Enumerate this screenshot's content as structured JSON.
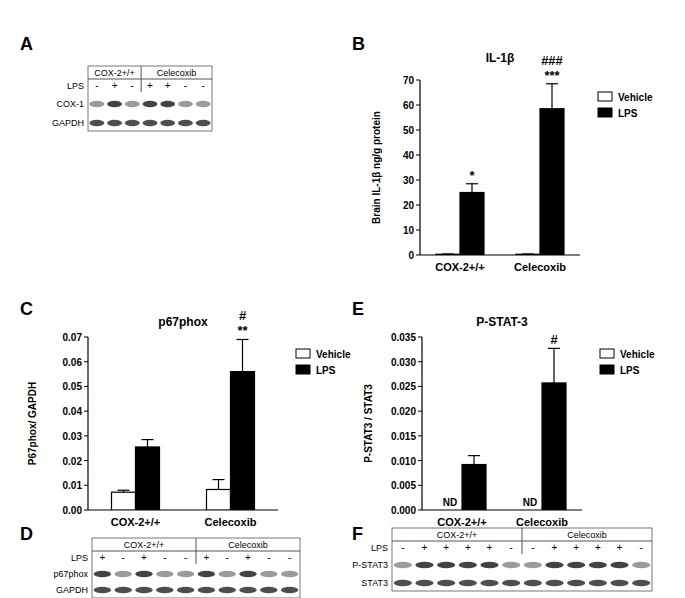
{
  "chart_data": [
    {
      "type": "bar",
      "label": "B",
      "title": "IL-1β",
      "y_label": "Brain IL-1β ng/g protein",
      "categories": [
        "COX-2+/+",
        "Celecoxib"
      ],
      "series": [
        {
          "name": "Vehicle",
          "color": "#ffffff",
          "values": [
            0.3,
            0.3
          ],
          "errors": [
            0.1,
            0.1
          ]
        },
        {
          "name": "LPS",
          "color": "#000000",
          "values": [
            25,
            58.5
          ],
          "errors": [
            3.5,
            10
          ]
        }
      ],
      "ylim": [
        0,
        70
      ],
      "yticks": [
        0,
        10,
        20,
        30,
        40,
        50,
        60,
        70
      ],
      "legend": "upper right",
      "annotations": [
        {
          "text": "*",
          "category": 0,
          "series": 1
        },
        {
          "text": "***",
          "category": 1,
          "series": 1
        },
        {
          "text": "###",
          "category": 1,
          "series": 1
        }
      ]
    },
    {
      "type": "bar",
      "label": "C",
      "title": "p67phox",
      "y_label": "P67phox/ GAPDH",
      "categories": [
        "COX-2+/+",
        "Celecoxib"
      ],
      "series": [
        {
          "name": "Vehicle",
          "color": "#ffffff",
          "values": [
            0.0072,
            0.0083
          ],
          "errors": [
            0.0008,
            0.004
          ]
        },
        {
          "name": "LPS",
          "color": "#000000",
          "values": [
            0.0255,
            0.056
          ],
          "errors": [
            0.003,
            0.013
          ]
        }
      ],
      "ylim": [
        0,
        0.07
      ],
      "yticks": [
        {
          "value": 0,
          "label": "0.00"
        },
        {
          "value": 0.01,
          "label": "0.01"
        },
        {
          "value": 0.02,
          "label": "0.02"
        },
        {
          "value": 0.03,
          "label": "0.03"
        },
        {
          "value": 0.04,
          "label": "0.04"
        },
        {
          "value": 0.05,
          "label": "0.05"
        },
        {
          "value": 0.06,
          "label": "0.06"
        },
        {
          "value": 0.07,
          "label": "0.07"
        }
      ],
      "legend": "upper right",
      "annotations": [
        {
          "text": "**",
          "category": 1,
          "series": 1
        },
        {
          "text": "#",
          "category": 1,
          "series": 1
        }
      ]
    },
    {
      "type": "bar",
      "label": "E",
      "title": "P-STAT-3",
      "y_label": "P-STAT3 / STAT3",
      "categories": [
        "COX-2+/+",
        "Celecoxib"
      ],
      "series": [
        {
          "name": "Vehicle",
          "color": "#ffffff",
          "values": [
            null,
            null
          ],
          "errors": [
            null,
            null
          ]
        },
        {
          "name": "LPS",
          "color": "#000000",
          "values": [
            0.0092,
            0.0257
          ],
          "errors": [
            0.0018,
            0.007
          ]
        }
      ],
      "ylim": [
        0,
        0.035
      ],
      "yticks": [
        {
          "value": 0,
          "label": "0.000"
        },
        {
          "value": 0.005,
          "label": "0.005"
        },
        {
          "value": 0.01,
          "label": "0.010"
        },
        {
          "value": 0.015,
          "label": "0.015"
        },
        {
          "value": 0.02,
          "label": "0.020"
        },
        {
          "value": 0.025,
          "label": "0.025"
        },
        {
          "value": 0.03,
          "label": "0.030"
        },
        {
          "value": 0.035,
          "label": "0.035"
        }
      ],
      "legend": "upper right",
      "annotations": [
        {
          "text": "ND",
          "category": 0,
          "series": 0
        },
        {
          "text": "ND",
          "category": 1,
          "series": 0
        },
        {
          "text": "#",
          "category": 1,
          "series": 1
        }
      ]
    }
  ],
  "blots": [
    {
      "label": "A",
      "groups": [
        "COX-2+/+",
        "Celecoxib"
      ],
      "group_lanes": [
        3,
        4
      ],
      "lane_label": "LPS",
      "lanes": [
        "-",
        "+",
        "-",
        "+",
        "+",
        "-",
        "-"
      ],
      "rows": [
        "COX-1",
        "GAPDH"
      ]
    },
    {
      "label": "D",
      "groups": [
        "COX-2+/+",
        "Celecoxib"
      ],
      "group_lanes": [
        5,
        5
      ],
      "lane_label": "LPS",
      "lanes": [
        "+",
        "-",
        "+",
        "-",
        "-",
        "+",
        "-",
        "+",
        "-",
        "-"
      ],
      "rows": [
        "p67phox",
        "GAPDH"
      ]
    },
    {
      "label": "F",
      "groups": [
        "COX-2+/+",
        "Celecoxib"
      ],
      "group_lanes": [
        6,
        6
      ],
      "lane_label": "LPS",
      "lanes": [
        "-",
        "+",
        "+",
        "+",
        "+",
        "-",
        "-",
        "+",
        "+",
        "+",
        "+",
        "-"
      ],
      "rows": [
        "P-STAT3",
        "STAT3"
      ]
    }
  ]
}
